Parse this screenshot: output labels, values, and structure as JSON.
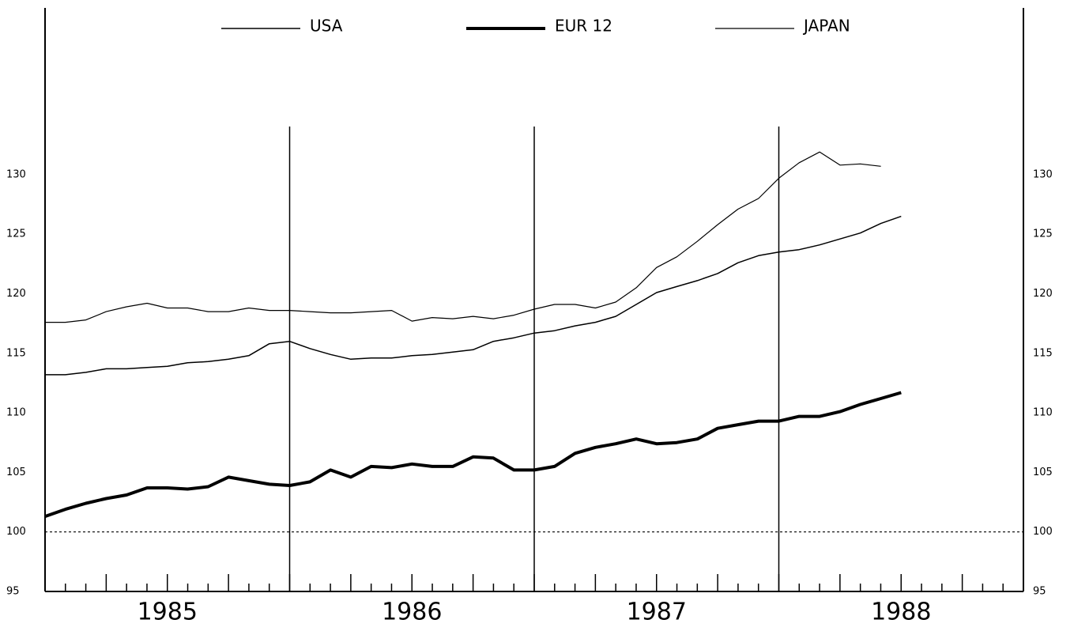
{
  "chart_data": {
    "type": "line",
    "x": [
      1985,
      1985.083,
      1985.167,
      1985.25,
      1985.333,
      1985.417,
      1985.5,
      1985.583,
      1985.667,
      1985.75,
      1985.833,
      1985.917,
      1986,
      1986.083,
      1986.167,
      1986.25,
      1986.333,
      1986.417,
      1986.5,
      1986.583,
      1986.667,
      1986.75,
      1986.833,
      1986.917,
      1987,
      1987.083,
      1987.167,
      1987.25,
      1987.333,
      1987.417,
      1987.5,
      1987.583,
      1987.667,
      1987.75,
      1987.833,
      1987.917,
      1988,
      1988.083,
      1988.167,
      1988.25,
      1988.333,
      1988.417,
      1988.5
    ],
    "series": [
      {
        "name": "USA",
        "color": "#000000",
        "width": 1.5,
        "values": [
          113.2,
          113.2,
          113.4,
          113.7,
          113.7,
          113.8,
          113.9,
          114.2,
          114.3,
          114.5,
          114.8,
          115.8,
          116.0,
          115.4,
          114.9,
          114.5,
          114.6,
          114.6,
          114.8,
          114.9,
          115.1,
          115.3,
          116.0,
          116.3,
          116.7,
          116.9,
          117.3,
          117.6,
          118.1,
          119.1,
          120.1,
          120.6,
          121.1,
          121.7,
          122.6,
          123.2,
          123.5,
          123.7,
          124.1,
          124.6,
          125.1,
          125.9,
          126.5
        ]
      },
      {
        "name": "EUR 12",
        "color": "#000000",
        "width": 4,
        "values": [
          101.3,
          101.9,
          102.4,
          102.8,
          103.1,
          103.7,
          103.7,
          103.6,
          103.8,
          104.6,
          104.3,
          104.0,
          103.9,
          104.2,
          105.2,
          104.6,
          105.5,
          105.4,
          105.7,
          105.5,
          105.5,
          106.3,
          106.2,
          105.2,
          105.2,
          105.5,
          106.6,
          107.1,
          107.4,
          107.8,
          107.4,
          107.5,
          107.8,
          108.7,
          109.0,
          109.3,
          109.3,
          109.7,
          109.7,
          110.1,
          110.7,
          111.2,
          111.7
        ]
      },
      {
        "name": "JAPAN",
        "color": "#000000",
        "width": 1.2,
        "values": [
          117.6,
          117.6,
          117.8,
          118.5,
          118.9,
          119.2,
          118.8,
          118.8,
          118.5,
          118.5,
          118.8,
          118.6,
          118.6,
          118.5,
          118.4,
          118.4,
          118.5,
          118.6,
          117.7,
          118.0,
          117.9,
          118.1,
          117.9,
          118.2,
          118.7,
          119.1,
          119.1,
          118.8,
          119.3,
          120.5,
          122.2,
          123.1,
          124.4,
          125.8,
          127.1,
          128.0,
          129.7,
          131.0,
          131.9,
          130.8,
          130.9,
          130.7,
          null
        ]
      }
    ],
    "xlim": [
      1985,
      1989
    ],
    "xticks": [
      {
        "value": 1985.5,
        "label": "1985"
      },
      {
        "value": 1986.5,
        "label": "1986"
      },
      {
        "value": 1987.5,
        "label": "1987"
      },
      {
        "value": 1988.5,
        "label": "1988"
      }
    ],
    "ylim": [
      95,
      144
    ],
    "yticks": [
      95,
      100,
      105,
      110,
      115,
      120,
      125,
      130
    ],
    "y2ticks": [
      95,
      100,
      105,
      110,
      115,
      120,
      125,
      130
    ],
    "vlines": [
      1986,
      1987,
      1988
    ],
    "hline": 100,
    "legend": "top"
  }
}
